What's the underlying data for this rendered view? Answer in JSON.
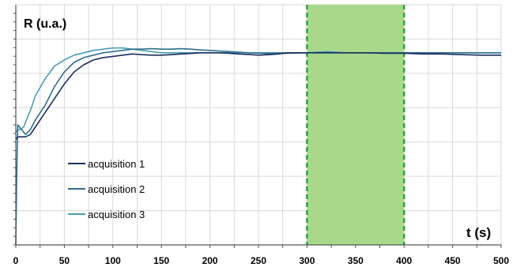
{
  "chart_data": {
    "type": "line",
    "ylabel": "R (u.a.)",
    "xlabel": "t (s)",
    "xlim": [
      0,
      500
    ],
    "x_ticks": [
      0,
      50,
      100,
      150,
      200,
      250,
      300,
      350,
      400,
      450,
      500
    ],
    "grid": true,
    "legend_position": "left",
    "highlight": {
      "x_start": 300,
      "x_end": 400,
      "fill_color": "#a8d98a",
      "border_color": "#2ea43b"
    },
    "series": [
      {
        "name": "acquisition 1",
        "color": "#1a2f5e",
        "x": [
          0,
          2,
          5,
          10,
          15,
          20,
          30,
          40,
          50,
          60,
          70,
          80,
          90,
          100,
          110,
          120,
          130,
          140,
          150,
          160,
          170,
          180,
          190,
          200,
          210,
          220,
          230,
          240,
          250,
          260,
          270,
          280,
          290,
          300,
          320,
          340,
          360,
          380,
          400,
          420,
          440,
          460,
          480,
          500
        ],
        "y": [
          0.44,
          0.45,
          0.45,
          0.45,
          0.46,
          0.49,
          0.55,
          0.61,
          0.67,
          0.72,
          0.75,
          0.77,
          0.78,
          0.785,
          0.79,
          0.795,
          0.792,
          0.79,
          0.79,
          0.792,
          0.795,
          0.797,
          0.8,
          0.8,
          0.8,
          0.798,
          0.795,
          0.793,
          0.79,
          0.792,
          0.795,
          0.8,
          0.8,
          0.8,
          0.8,
          0.8,
          0.8,
          0.798,
          0.798,
          0.795,
          0.795,
          0.792,
          0.79,
          0.79
        ]
      },
      {
        "name": "acquisition 2",
        "color": "#2e6f8c",
        "x": [
          0,
          1,
          2,
          4,
          6,
          10,
          15,
          20,
          30,
          40,
          50,
          60,
          70,
          80,
          90,
          100,
          110,
          120,
          130,
          140,
          150,
          160,
          170,
          180,
          190,
          200,
          220,
          240,
          260,
          280,
          300,
          320,
          340,
          360,
          380,
          400,
          420,
          440,
          460,
          480,
          500
        ],
        "y": [
          0.0,
          0.3,
          0.5,
          0.49,
          0.48,
          0.46,
          0.48,
          0.52,
          0.58,
          0.66,
          0.72,
          0.76,
          0.78,
          0.79,
          0.8,
          0.805,
          0.81,
          0.815,
          0.815,
          0.817,
          0.815,
          0.815,
          0.817,
          0.815,
          0.812,
          0.81,
          0.805,
          0.8,
          0.797,
          0.798,
          0.8,
          0.8,
          0.8,
          0.8,
          0.8,
          0.8,
          0.8,
          0.8,
          0.8,
          0.8,
          0.8
        ]
      },
      {
        "name": "acquisition 3",
        "color": "#4a9cb5",
        "x": [
          0,
          2,
          4,
          8,
          12,
          16,
          20,
          30,
          40,
          50,
          60,
          70,
          80,
          90,
          100,
          110,
          120,
          130,
          140,
          150,
          160,
          170,
          180,
          190,
          200,
          220,
          240,
          260,
          280,
          300,
          320,
          340,
          360,
          380,
          400,
          420,
          440,
          460,
          480,
          500
        ],
        "y": [
          0.47,
          0.48,
          0.48,
          0.49,
          0.53,
          0.57,
          0.62,
          0.69,
          0.745,
          0.77,
          0.79,
          0.8,
          0.81,
          0.815,
          0.82,
          0.82,
          0.815,
          0.81,
          0.805,
          0.8,
          0.8,
          0.8,
          0.8,
          0.8,
          0.8,
          0.8,
          0.8,
          0.8,
          0.8,
          0.8,
          0.805,
          0.8,
          0.8,
          0.8,
          0.8,
          0.8,
          0.8,
          0.8,
          0.8,
          0.8
        ]
      }
    ]
  }
}
